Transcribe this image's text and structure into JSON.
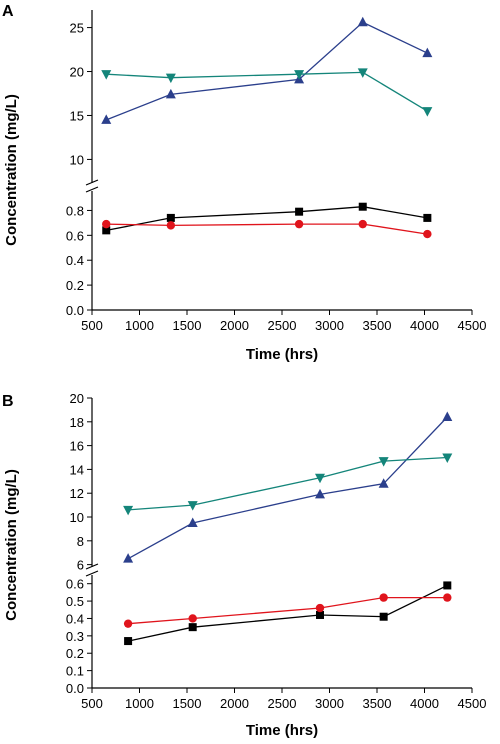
{
  "chart_data": [
    {
      "type": "line",
      "panel_label": "A",
      "xlabel": "Time (hrs)",
      "ylabel": "Concentration (mg/L)",
      "xlim": [
        500,
        4500
      ],
      "xticks": [
        500,
        1000,
        1500,
        2000,
        2500,
        3000,
        3500,
        4000,
        4500
      ],
      "upper_ylim": [
        8,
        27
      ],
      "upper_yticks": [
        10,
        15,
        20,
        25
      ],
      "lower_ylim": [
        0,
        0.9
      ],
      "lower_yticks": [
        0.0,
        0.2,
        0.4,
        0.6,
        0.8
      ],
      "series": [
        {
          "marker": "triangle-up",
          "color": "#2b3f8c",
          "axis": "upper",
          "x": [
            650,
            1330,
            2680,
            3350,
            4030
          ],
          "y": [
            14.5,
            17.4,
            19.1,
            25.6,
            22.1
          ]
        },
        {
          "marker": "triangle-down",
          "color": "#14857a",
          "axis": "upper",
          "x": [
            650,
            1330,
            2680,
            3350,
            4030
          ],
          "y": [
            19.7,
            19.3,
            19.7,
            19.9,
            15.5
          ]
        },
        {
          "marker": "square",
          "color": "#000000",
          "axis": "lower",
          "x": [
            650,
            1330,
            2680,
            3350,
            4030
          ],
          "y": [
            0.64,
            0.74,
            0.79,
            0.83,
            0.74
          ]
        },
        {
          "marker": "circle",
          "color": "#e0141c",
          "axis": "lower",
          "x": [
            650,
            1330,
            2680,
            3350,
            4030
          ],
          "y": [
            0.69,
            0.68,
            0.69,
            0.69,
            0.61
          ]
        }
      ]
    },
    {
      "type": "line",
      "panel_label": "B",
      "xlabel": "Time (hrs)",
      "ylabel": "Concentration (mg/L)",
      "xlim": [
        500,
        4500
      ],
      "xticks": [
        500,
        1000,
        1500,
        2000,
        2500,
        3000,
        3500,
        4000,
        4500
      ],
      "upper_ylim": [
        5.8,
        20
      ],
      "upper_yticks": [
        6,
        8,
        10,
        12,
        14,
        16,
        18,
        20
      ],
      "lower_ylim": [
        0,
        0.65
      ],
      "lower_yticks": [
        0.0,
        0.1,
        0.2,
        0.3,
        0.4,
        0.5,
        0.6
      ],
      "series": [
        {
          "marker": "triangle-up",
          "color": "#2b3f8c",
          "axis": "upper",
          "x": [
            880,
            1560,
            2900,
            3570,
            4240
          ],
          "y": [
            6.5,
            9.5,
            11.9,
            12.8,
            18.4
          ]
        },
        {
          "marker": "triangle-down",
          "color": "#14857a",
          "axis": "upper",
          "x": [
            880,
            1560,
            2900,
            3570,
            4240
          ],
          "y": [
            10.6,
            11.0,
            13.3,
            14.7,
            15.0
          ]
        },
        {
          "marker": "square",
          "color": "#000000",
          "axis": "lower",
          "x": [
            880,
            1560,
            2900,
            3570,
            4240
          ],
          "y": [
            0.27,
            0.35,
            0.42,
            0.41,
            0.59
          ]
        },
        {
          "marker": "circle",
          "color": "#e0141c",
          "axis": "lower",
          "x": [
            880,
            1560,
            2900,
            3570,
            4240
          ],
          "y": [
            0.37,
            0.4,
            0.46,
            0.52,
            0.52
          ]
        }
      ]
    }
  ]
}
